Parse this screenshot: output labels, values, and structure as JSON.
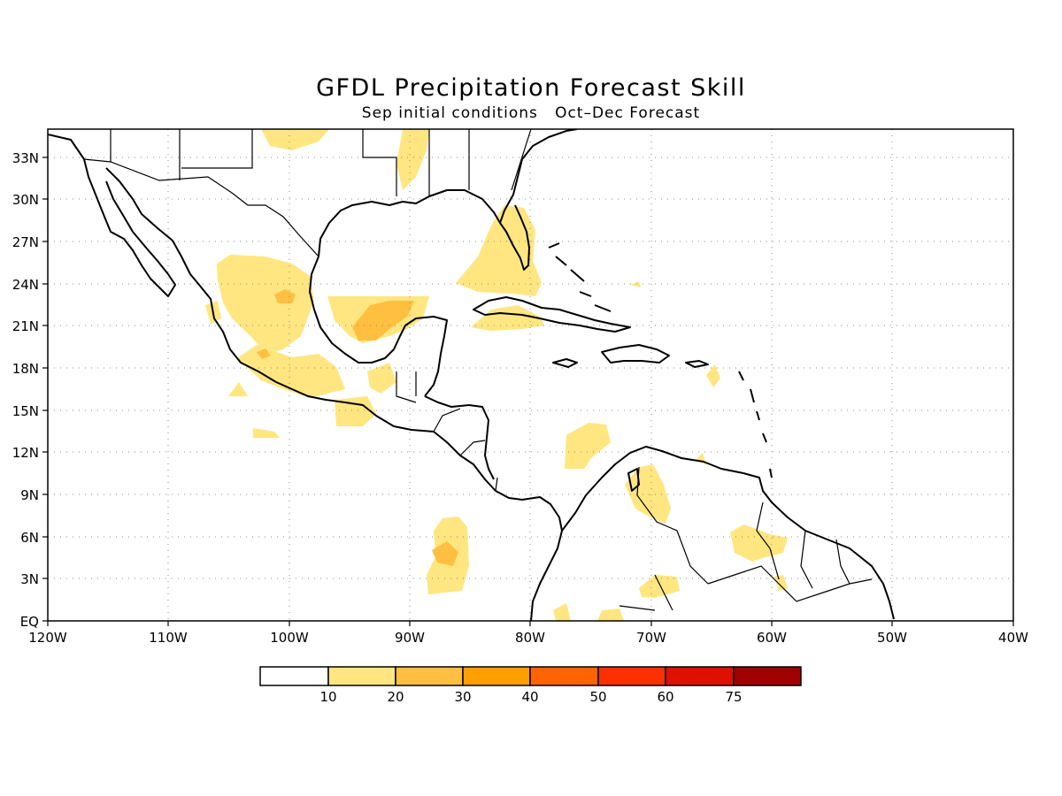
{
  "figure": {
    "title": "GFDL Precipitation Forecast Skill",
    "subtitle": "Sep initial conditions   Oct–Dec Forecast"
  },
  "map": {
    "lon_range": [
      -120,
      -40
    ],
    "lat_range": [
      0,
      35
    ],
    "x_tick_labels": [
      "120W",
      "110W",
      "100W",
      "90W",
      "80W",
      "70W",
      "60W",
      "50W",
      "40W"
    ],
    "y_tick_labels": [
      "EQ",
      "3N",
      "6N",
      "9N",
      "12N",
      "15N",
      "18N",
      "21N",
      "24N",
      "27N",
      "30N",
      "33N"
    ],
    "grid": "dotted",
    "region": "Central America & Caribbean"
  },
  "legend": {
    "labels": [
      "10",
      "20",
      "30",
      "40",
      "50",
      "60",
      "75"
    ],
    "colors": [
      "#ffffff",
      "#ffe680",
      "#ffbf40",
      "#ffa000",
      "#ff6400",
      "#ff3000",
      "#e01000",
      "#a00000"
    ]
  },
  "chart_data": {
    "type": "heatmap",
    "variable": "precipitation forecast skill",
    "levels": [
      10,
      20,
      30,
      40,
      50,
      60,
      75
    ],
    "regions": [
      {
        "name": "Gulf of Mexico",
        "level": 20
      },
      {
        "name": "Central Mexico",
        "level": 20
      },
      {
        "name": "Florida",
        "level": 10
      },
      {
        "name": "Cuba",
        "level": 10
      },
      {
        "name": "Southern Mexico coast",
        "level": 10
      },
      {
        "name": "Caribbean Sea (off Nicaragua)",
        "level": 10
      },
      {
        "name": "Colombia / Venezuela",
        "level": 10
      },
      {
        "name": "Eastern Pacific (near 5N 88W)",
        "level": 20
      },
      {
        "name": "Guyana",
        "level": 10
      }
    ]
  }
}
